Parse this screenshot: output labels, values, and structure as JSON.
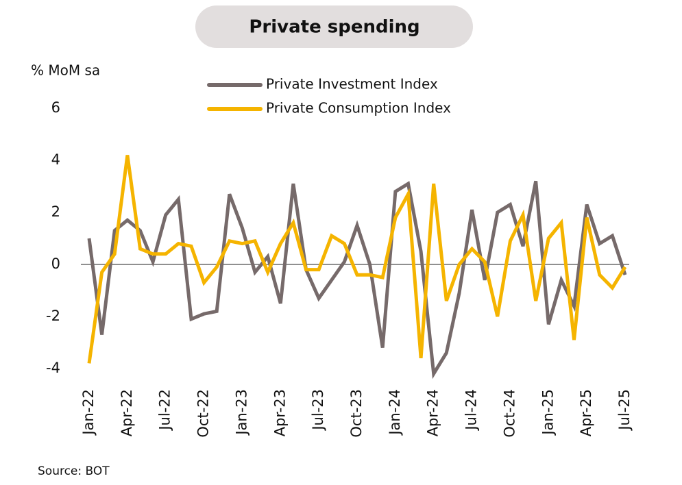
{
  "chart_data": {
    "type": "line",
    "title": "Private spending",
    "y_label": "% MoM sa",
    "source": "Source: BOT",
    "categories": [
      "Jan-22",
      null,
      null,
      "Apr-22",
      null,
      null,
      "Jul-22",
      null,
      null,
      "Oct-22",
      null,
      null,
      "Jan-23",
      null,
      null,
      "Apr-23",
      null,
      null,
      "Jul-23",
      null,
      null,
      "Oct-23",
      null,
      null,
      "Jan-24",
      null,
      null,
      "Apr-24",
      null,
      null,
      "Jul-24",
      null,
      null,
      "Oct-24",
      null,
      null,
      "Jan-25",
      null,
      null,
      "Apr-25",
      null,
      null,
      "Jul-25"
    ],
    "series": [
      {
        "name": "Private Investment Index",
        "color": "#766a6a",
        "values": [
          1.0,
          -2.7,
          1.3,
          1.7,
          1.3,
          0.1,
          1.9,
          2.5,
          -2.1,
          -1.9,
          -1.8,
          2.7,
          1.4,
          -0.3,
          0.3,
          -1.5,
          3.1,
          -0.2,
          -1.3,
          -0.6,
          0.1,
          1.5,
          0.0,
          -3.2,
          2.8,
          3.1,
          0.5,
          -4.2,
          -3.4,
          -1.1,
          2.1,
          -0.6,
          2.0,
          2.3,
          0.7,
          3.2,
          -2.3,
          -0.6,
          -1.6,
          2.3,
          0.8,
          1.1,
          -0.4
        ]
      },
      {
        "name": "Private Consumption Index",
        "color": "#f5b400",
        "values": [
          -3.8,
          -0.3,
          0.4,
          4.2,
          0.6,
          0.4,
          0.4,
          0.8,
          0.7,
          -0.7,
          -0.1,
          0.9,
          0.8,
          0.9,
          -0.3,
          0.8,
          1.6,
          -0.2,
          -0.2,
          1.1,
          0.8,
          -0.4,
          -0.4,
          -0.5,
          1.8,
          2.7,
          -3.6,
          3.1,
          -1.4,
          0.0,
          0.6,
          0.1,
          -2.0,
          0.9,
          1.9,
          -1.4,
          1.0,
          1.6,
          -2.9,
          1.8,
          -0.4,
          -0.9,
          -0.1
        ]
      }
    ],
    "ylim": [
      -4.2,
      6
    ],
    "yticks": [
      -4,
      -2,
      0,
      2,
      4,
      6
    ],
    "grid": false
  }
}
